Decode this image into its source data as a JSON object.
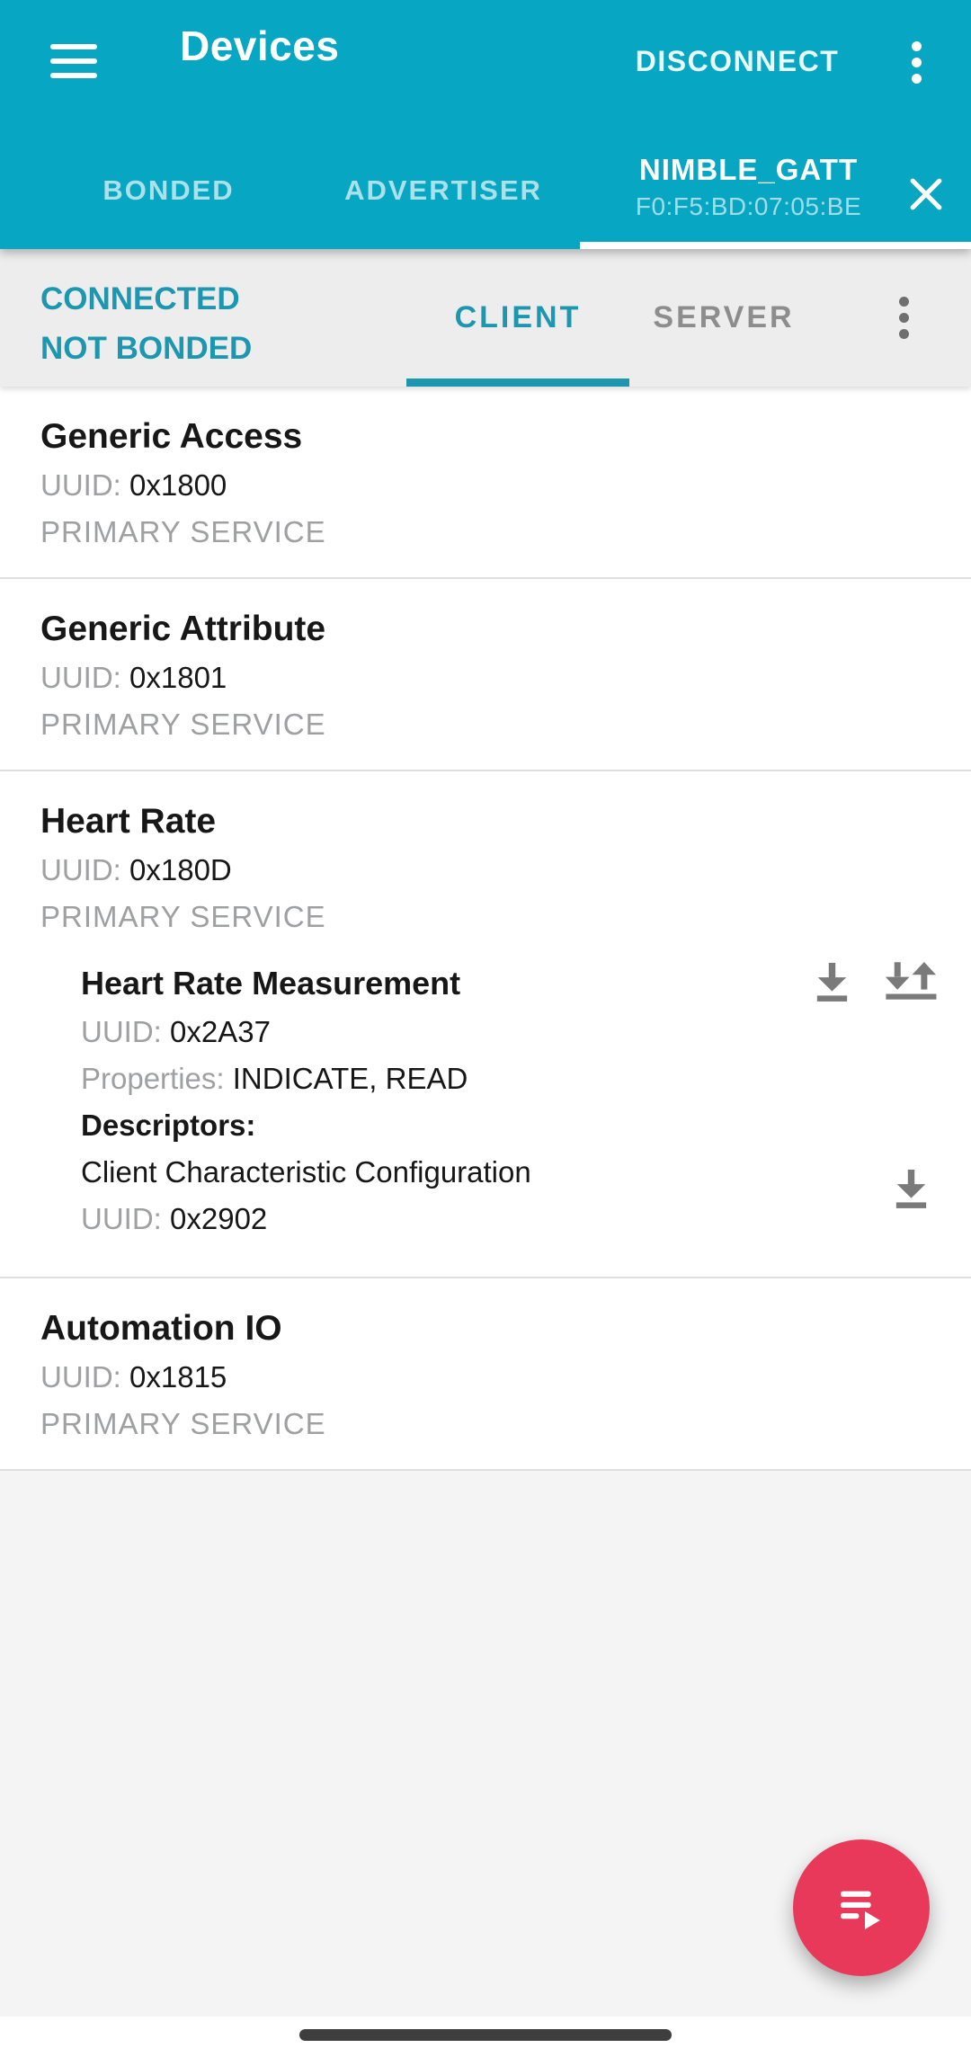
{
  "colors": {
    "app_bar": "#07a6c2",
    "accent_teal": "#1d96b0",
    "fab": "#e8395a"
  },
  "app_bar": {
    "title": "Devices",
    "action": "DISCONNECT",
    "menu_icon": "hamburger-menu-icon",
    "overflow_icon": "more-vert-icon",
    "tabs": [
      {
        "label": "BONDED",
        "active": false
      },
      {
        "label": "ADVERTISER",
        "active": false
      }
    ],
    "device_tab": {
      "name": "NIMBLE_GATT",
      "address": "F0:F5:BD:07:05:BE",
      "active": true,
      "close_icon": "close-icon"
    }
  },
  "connection_panel": {
    "status_lines": [
      "CONNECTED",
      "NOT BONDED"
    ],
    "tabs": [
      {
        "label": "CLIENT",
        "active": true
      },
      {
        "label": "SERVER",
        "active": false
      }
    ],
    "overflow_icon": "more-vert-icon"
  },
  "labels": {
    "uuid": "UUID:",
    "properties": "Properties:",
    "descriptors": "Descriptors:"
  },
  "services": [
    {
      "name": "Generic Access",
      "uuid": "0x1800",
      "type": "PRIMARY SERVICE",
      "characteristics": []
    },
    {
      "name": "Generic Attribute",
      "uuid": "0x1801",
      "type": "PRIMARY SERVICE",
      "characteristics": []
    },
    {
      "name": "Heart Rate",
      "uuid": "0x180D",
      "type": "PRIMARY SERVICE",
      "characteristics": [
        {
          "name": "Heart Rate Measurement",
          "uuid": "0x2A37",
          "properties": "INDICATE, READ",
          "action_icons": [
            "read-value-icon",
            "subscribe-indicate-icon"
          ],
          "descriptors": [
            {
              "name": "Client Characteristic Configuration",
              "uuid": "0x2902",
              "action_icons": [
                "read-value-icon"
              ]
            }
          ]
        }
      ]
    },
    {
      "name": "Automation IO",
      "uuid": "0x1815",
      "type": "PRIMARY SERVICE",
      "characteristics": []
    }
  ],
  "fab": {
    "icon": "playlist-play-icon"
  },
  "nav": {
    "gesture_bar": true
  }
}
